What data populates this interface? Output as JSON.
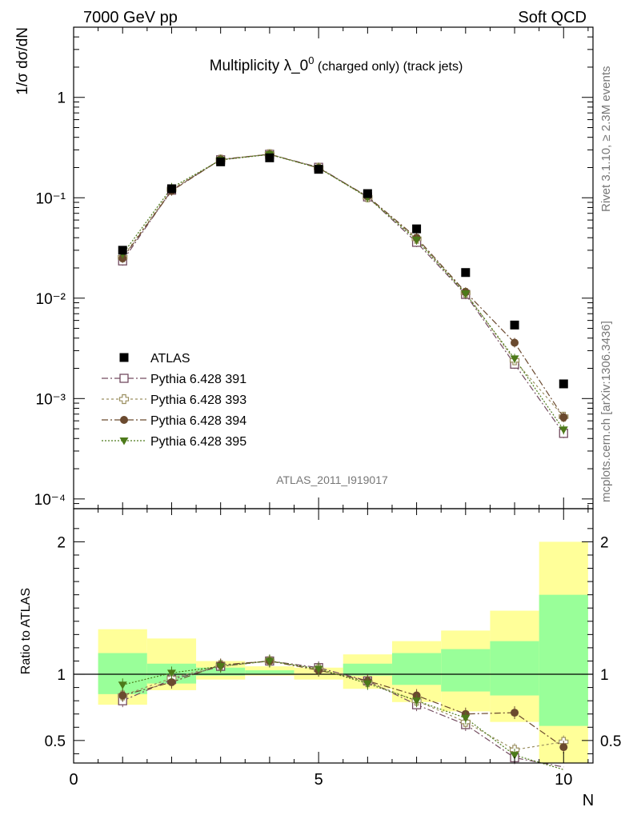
{
  "header": {
    "left": "7000 GeV pp",
    "right": "Soft QCD"
  },
  "side_labels": {
    "rivet": "Rivet 3.1.10, ≥ 2.3M events",
    "mcplots": "mcplots.cern.ch [arXiv:1306.3436]"
  },
  "chart_data": {
    "type": "scatter",
    "title": "Multiplicity λ_0⁰ (charged only) (track jets)",
    "ylabel": "1/σ dσ/dN",
    "ratio_ylabel": "Ratio to ATLAS",
    "xlabel": "N",
    "watermark": "ATLAS_2011_I919017",
    "y_scale": "log",
    "xlim": [
      0,
      10.6
    ],
    "ylim": [
      8e-05,
      5
    ],
    "ratio_ylim": [
      0.33,
      2.25
    ],
    "x_ticks": [
      "0",
      "5",
      "10"
    ],
    "y_ticks": [
      "10⁻⁴",
      "10⁻³",
      "10⁻²",
      "10⁻¹",
      "1"
    ],
    "ratio_ticks": [
      "0.5",
      "1",
      "2"
    ],
    "x": [
      1,
      2,
      3,
      4,
      5,
      6,
      7,
      8,
      9,
      10
    ],
    "reference": {
      "name": "ATLAS",
      "color": "#000000",
      "values": [
        0.03,
        0.123,
        0.228,
        0.25,
        0.192,
        0.11,
        0.049,
        0.018,
        0.0054,
        0.0014
      ],
      "band_stat": [
        [
          0.85,
          1.16
        ],
        [
          0.93,
          1.08
        ],
        [
          0.99,
          1.05
        ],
        [
          1.0,
          1.03
        ],
        [
          1.0,
          1.0
        ],
        [
          0.99,
          1.08
        ],
        [
          0.92,
          1.16
        ],
        [
          0.87,
          1.19
        ],
        [
          0.84,
          1.25
        ],
        [
          0.61,
          1.6
        ]
      ],
      "band_total": [
        [
          0.77,
          1.34
        ],
        [
          0.88,
          1.27
        ],
        [
          0.96,
          1.1
        ],
        [
          0.99,
          1.06
        ],
        [
          0.96,
          1.05
        ],
        [
          0.89,
          1.15
        ],
        [
          0.79,
          1.25
        ],
        [
          0.72,
          1.33
        ],
        [
          0.64,
          1.48
        ],
        [
          0.3,
          2.0
        ]
      ]
    },
    "series": [
      {
        "name": "Pythia 6.428 391",
        "color": "#734c60",
        "marker": "open-square",
        "dash": "8,3,2,3",
        "values": [
          0.0235,
          0.119,
          0.239,
          0.271,
          0.201,
          0.102,
          0.036,
          0.0109,
          0.0022,
          0.00045
        ],
        "ratio": [
          0.8,
          0.96,
          1.06,
          1.1,
          1.05,
          0.95,
          0.77,
          0.62,
          0.37,
          0.3
        ]
      },
      {
        "name": "Pythia 6.428 393",
        "color": "#9b8f60",
        "marker": "open-cross",
        "dash": "3,3",
        "values": [
          0.0255,
          0.121,
          0.24,
          0.272,
          0.199,
          0.101,
          0.039,
          0.0113,
          0.0024,
          0.00066
        ],
        "ratio": [
          0.84,
          0.97,
          1.07,
          1.1,
          1.04,
          0.94,
          0.8,
          0.64,
          0.43,
          0.49
        ]
      },
      {
        "name": "Pythia 6.428 394",
        "color": "#6b4a2f",
        "marker": "filled-circle",
        "dash": "8,3,2,3",
        "values": [
          0.025,
          0.117,
          0.241,
          0.271,
          0.198,
          0.103,
          0.04,
          0.0115,
          0.0036,
          0.00065
        ],
        "ratio": [
          0.84,
          0.94,
          1.07,
          1.1,
          1.03,
          0.95,
          0.84,
          0.7,
          0.71,
          0.45
        ]
      },
      {
        "name": "Pythia 6.428 395",
        "color": "#4d7a1a",
        "marker": "filled-triangle",
        "dash": "2,2",
        "values": [
          0.0275,
          0.126,
          0.238,
          0.27,
          0.198,
          0.101,
          0.038,
          0.0111,
          0.0025,
          0.00049
        ],
        "ratio": [
          0.92,
          1.01,
          1.06,
          1.1,
          1.04,
          0.93,
          0.8,
          0.67,
          0.39,
          0.28
        ]
      }
    ]
  }
}
